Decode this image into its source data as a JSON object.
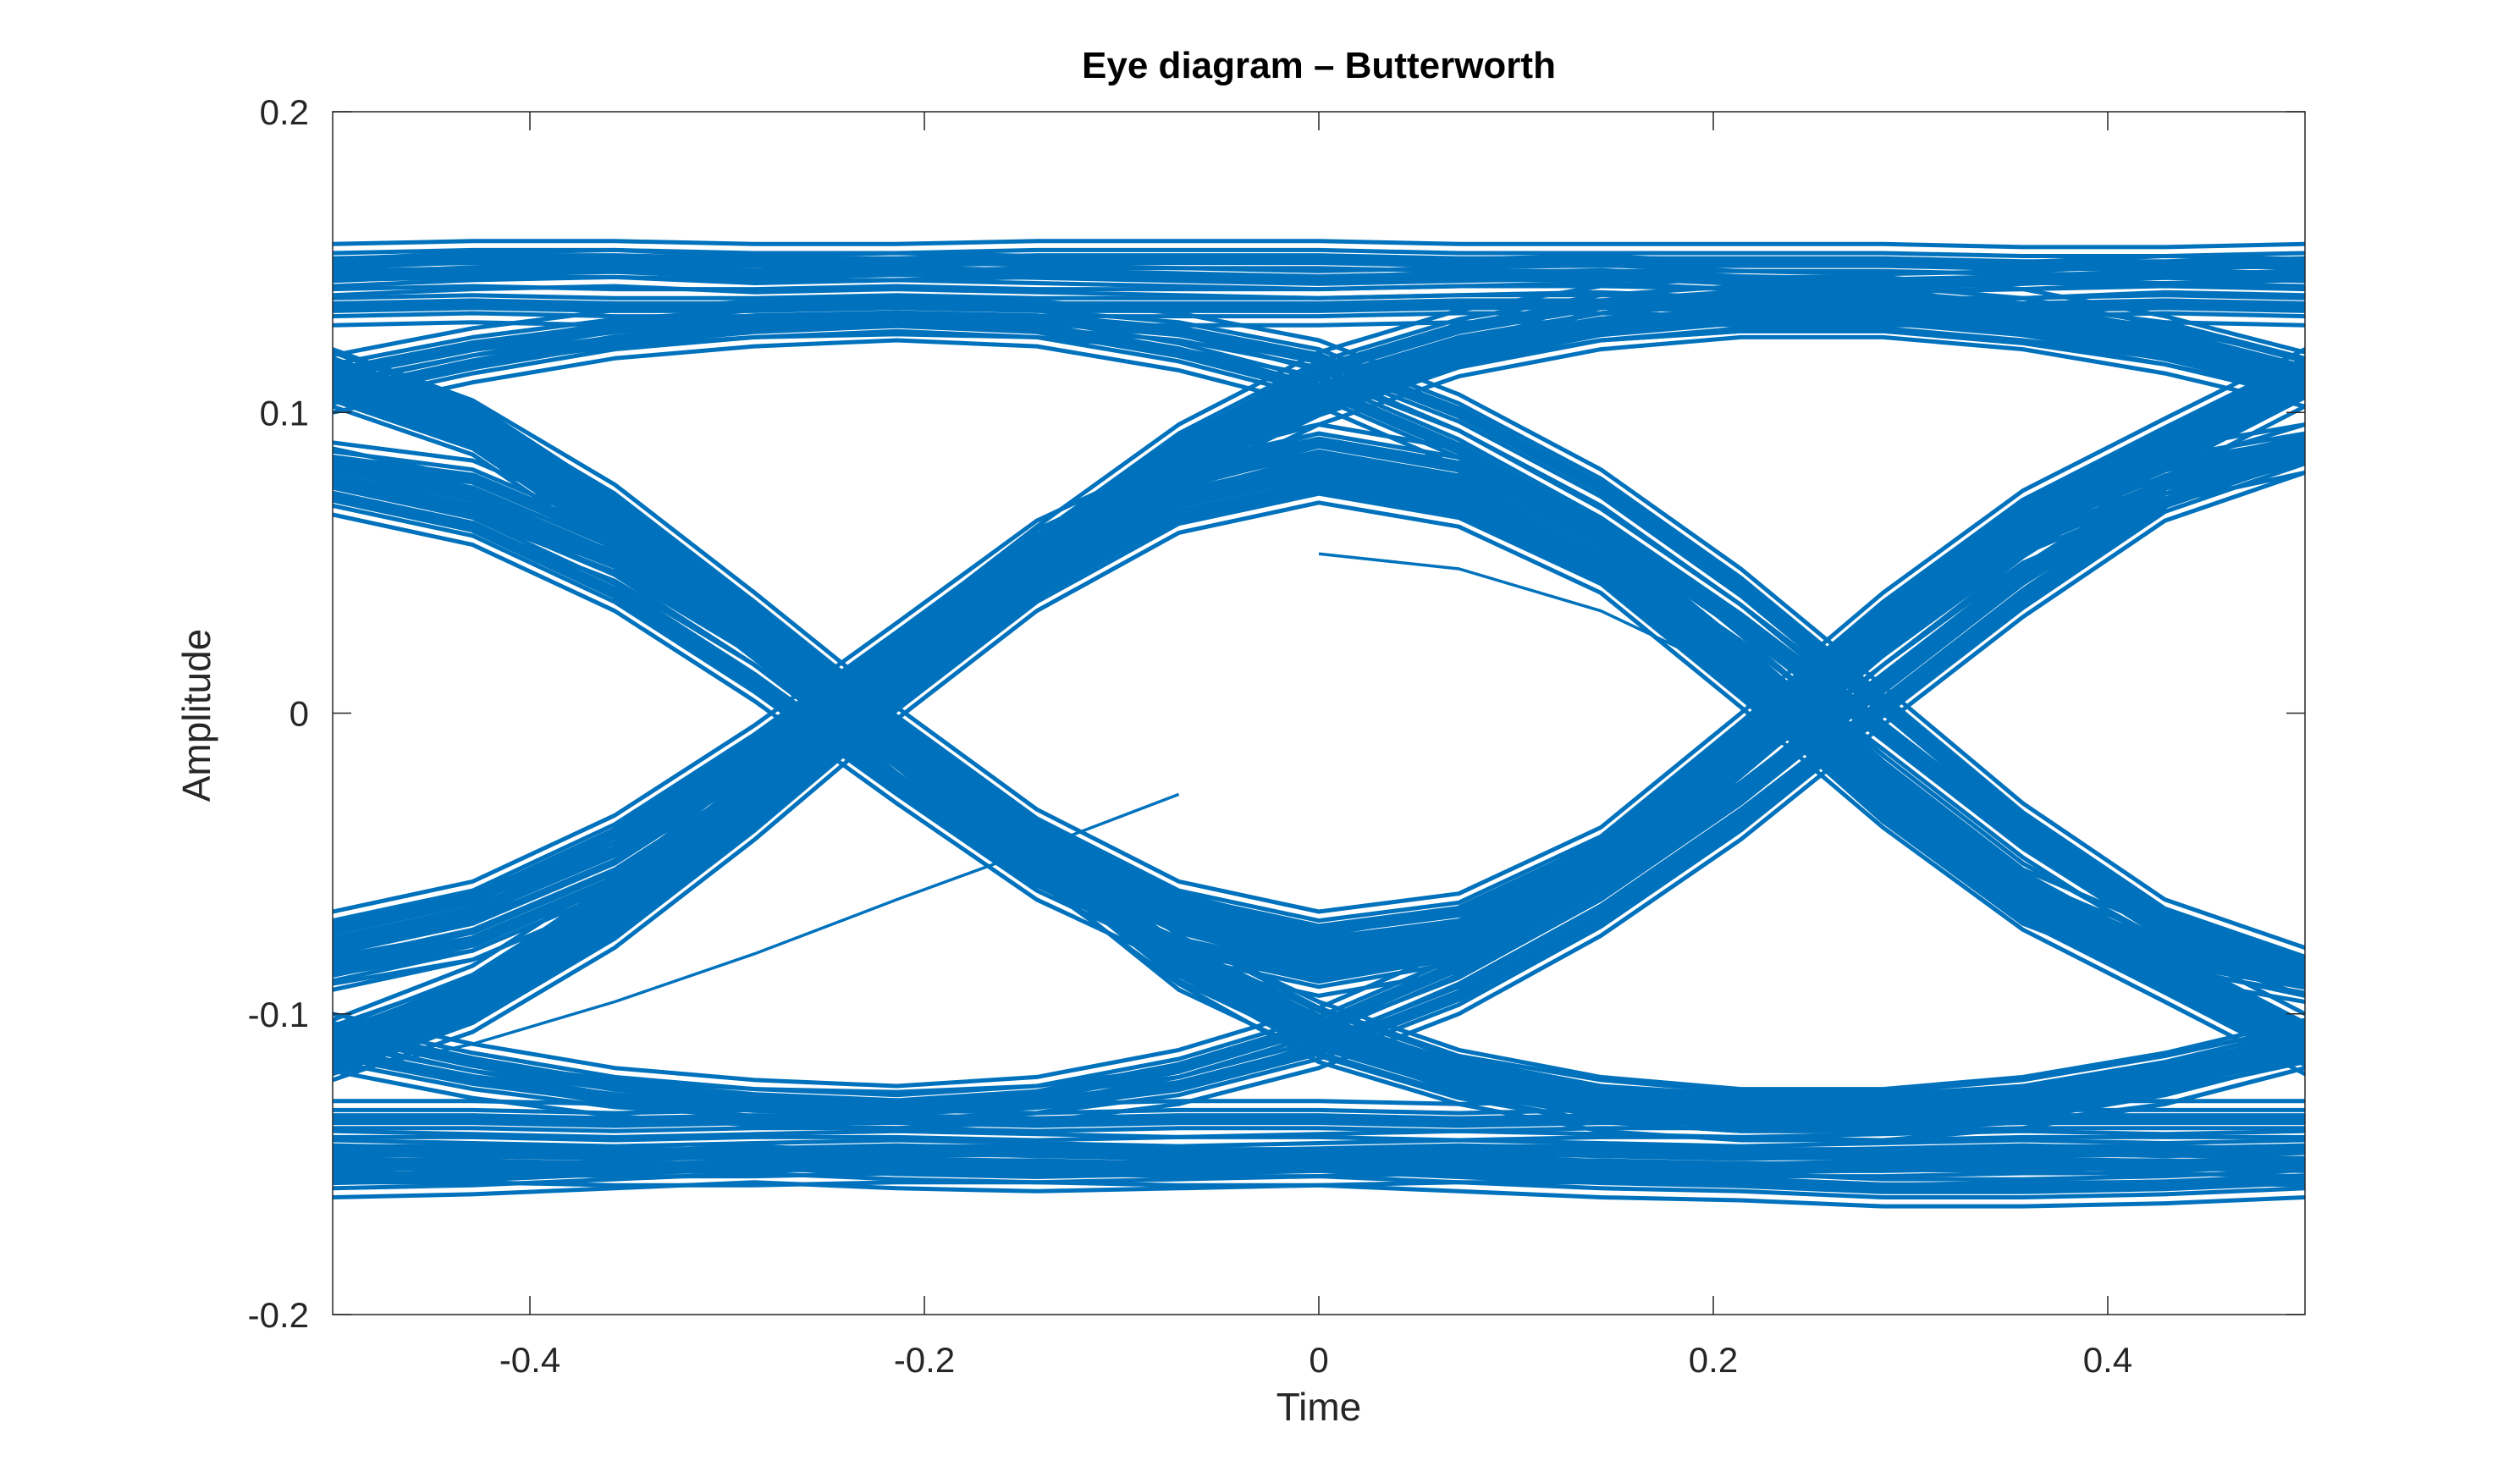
{
  "chart_data": {
    "type": "line",
    "title": "Eye diagram – Butterworth",
    "xlabel": "Time",
    "ylabel": "Amplitude",
    "xlim": [
      -0.5,
      0.5
    ],
    "ylim": [
      -0.2,
      0.2
    ],
    "xticks": [
      -0.4,
      -0.2,
      0,
      0.2,
      0.4
    ],
    "xtick_labels": [
      "-0.4",
      "-0.2",
      "0",
      "0.2",
      "0.4"
    ],
    "yticks": [
      -0.2,
      -0.1,
      0,
      0.1,
      0.2
    ],
    "ytick_labels": [
      "-0.2",
      "-0.1",
      "0",
      "0.1",
      "0.2"
    ],
    "grid": false,
    "legend": "none",
    "line_color": "#0072BD",
    "x": [
      -0.5,
      -0.429,
      -0.357,
      -0.286,
      -0.214,
      -0.143,
      -0.071,
      0,
      0.071,
      0.143,
      0.214,
      0.286,
      0.357,
      0.429,
      0.5
    ],
    "series": [
      {
        "values": [
          0.15,
          0.151,
          0.151,
          0.15,
          0.15,
          0.151,
          0.151,
          0.151,
          0.15,
          0.15,
          0.15,
          0.15,
          0.149,
          0.149,
          0.15
        ]
      },
      {
        "values": [
          0.135,
          0.136,
          0.135,
          0.135,
          0.136,
          0.135,
          0.135,
          0.135,
          0.136,
          0.136,
          0.135,
          0.135,
          0.135,
          0.136,
          0.135
        ]
      },
      {
        "values": [
          0.145,
          0.147,
          0.148,
          0.146,
          0.147,
          0.146,
          0.145,
          0.144,
          0.145,
          0.146,
          0.144,
          0.143,
          0.144,
          0.146,
          0.145
        ]
      },
      {
        "values": [
          0.113,
          0.122,
          0.128,
          0.131,
          0.132,
          0.131,
          0.127,
          0.118,
          0.1,
          0.075,
          0.042,
          0.003,
          -0.036,
          -0.068,
          -0.084
        ]
      },
      {
        "values": [
          0.106,
          0.116,
          0.124,
          0.128,
          0.13,
          0.128,
          0.12,
          0.108,
          0.088,
          0.062,
          0.03,
          -0.006,
          -0.042,
          -0.072,
          -0.088
        ]
      },
      {
        "values": [
          0.112,
          0.096,
          0.066,
          0.03,
          -0.008,
          -0.042,
          -0.066,
          -0.078,
          -0.072,
          -0.048,
          -0.01,
          0.03,
          0.064,
          0.088,
          0.112
        ]
      },
      {
        "values": [
          0.108,
          0.092,
          0.06,
          0.024,
          -0.014,
          -0.046,
          -0.07,
          -0.082,
          -0.076,
          -0.052,
          -0.014,
          0.026,
          0.06,
          0.084,
          0.108
        ]
      },
      {
        "values": [
          0.115,
          0.098,
          0.07,
          0.034,
          -0.004,
          -0.038,
          -0.062,
          -0.072,
          -0.066,
          -0.044,
          -0.006,
          0.034,
          0.068,
          0.092,
          0.115
        ]
      },
      {
        "values": [
          0.11,
          0.094,
          0.062,
          0.026,
          -0.012,
          -0.048,
          -0.086,
          -0.108,
          -0.122,
          -0.13,
          -0.133,
          -0.133,
          -0.13,
          -0.124,
          -0.112
        ]
      },
      {
        "values": [
          0.114,
          0.097,
          0.066,
          0.03,
          -0.008,
          -0.044,
          -0.08,
          -0.102,
          -0.118,
          -0.127,
          -0.131,
          -0.131,
          -0.127,
          -0.119,
          -0.108
        ]
      },
      {
        "values": [
          0.084,
          0.078,
          0.058,
          0.028,
          -0.01,
          -0.046,
          -0.08,
          -0.104,
          -0.12,
          -0.128,
          -0.132,
          -0.132,
          -0.128,
          -0.12,
          -0.11
        ]
      },
      {
        "values": [
          0.078,
          0.068,
          0.05,
          0.022,
          -0.014,
          -0.05,
          -0.084,
          -0.11,
          -0.124,
          -0.133,
          -0.136,
          -0.136,
          -0.132,
          -0.124,
          -0.112
        ]
      },
      {
        "values": [
          0.072,
          0.062,
          0.04,
          0.01,
          -0.024,
          -0.056,
          -0.078,
          -0.088,
          -0.08,
          -0.056,
          -0.018,
          0.022,
          0.056,
          0.076,
          0.086
        ]
      },
      {
        "values": [
          0.082,
          0.072,
          0.052,
          0.022,
          -0.014,
          -0.048,
          -0.07,
          -0.08,
          -0.072,
          -0.05,
          -0.012,
          0.028,
          0.062,
          0.082,
          0.09
        ]
      },
      {
        "values": [
          -0.15,
          -0.15,
          -0.151,
          -0.151,
          -0.15,
          -0.15,
          -0.151,
          -0.151,
          -0.15,
          -0.15,
          -0.151,
          -0.151,
          -0.15,
          -0.15,
          -0.151
        ]
      },
      {
        "values": [
          -0.135,
          -0.135,
          -0.136,
          -0.135,
          -0.135,
          -0.136,
          -0.135,
          -0.135,
          -0.136,
          -0.135,
          -0.135,
          -0.136,
          -0.135,
          -0.135,
          -0.135
        ]
      },
      {
        "values": [
          -0.145,
          -0.146,
          -0.147,
          -0.146,
          -0.145,
          -0.146,
          -0.147,
          -0.146,
          -0.145,
          -0.146,
          -0.147,
          -0.146,
          -0.145,
          -0.146,
          -0.145
        ]
      },
      {
        "values": [
          -0.155,
          -0.154,
          -0.152,
          -0.15,
          -0.152,
          -0.153,
          -0.152,
          -0.151,
          -0.153,
          -0.155,
          -0.156,
          -0.158,
          -0.158,
          -0.157,
          -0.155
        ]
      },
      {
        "values": [
          -0.113,
          -0.122,
          -0.128,
          -0.131,
          -0.132,
          -0.13,
          -0.124,
          -0.112,
          -0.094,
          -0.068,
          -0.036,
          0.002,
          0.038,
          0.07,
          0.086
        ]
      },
      {
        "values": [
          -0.106,
          -0.116,
          -0.124,
          -0.128,
          -0.13,
          -0.127,
          -0.118,
          -0.104,
          -0.084,
          -0.058,
          -0.026,
          0.01,
          0.046,
          0.076,
          0.09
        ]
      },
      {
        "values": [
          -0.112,
          -0.096,
          -0.066,
          -0.03,
          0.01,
          0.046,
          0.072,
          0.084,
          0.076,
          0.052,
          0.014,
          -0.026,
          -0.062,
          -0.086,
          -0.11
        ]
      },
      {
        "values": [
          -0.108,
          -0.09,
          -0.06,
          -0.024,
          0.016,
          0.052,
          0.078,
          0.09,
          0.082,
          0.058,
          0.02,
          -0.02,
          -0.056,
          -0.082,
          -0.106
        ]
      },
      {
        "values": [
          -0.116,
          -0.1,
          -0.072,
          -0.036,
          0.004,
          0.04,
          0.066,
          0.076,
          0.068,
          0.046,
          0.008,
          -0.032,
          -0.066,
          -0.09,
          -0.114
        ]
      },
      {
        "values": [
          -0.11,
          -0.094,
          -0.062,
          -0.026,
          0.012,
          0.048,
          0.086,
          0.108,
          0.122,
          0.13,
          0.133,
          0.133,
          0.13,
          0.124,
          0.112
        ]
      },
      {
        "values": [
          -0.114,
          -0.097,
          -0.066,
          -0.03,
          0.008,
          0.044,
          0.08,
          0.102,
          0.118,
          0.127,
          0.131,
          0.131,
          0.127,
          0.119,
          0.108
        ]
      },
      {
        "values": [
          -0.084,
          -0.076,
          -0.056,
          -0.026,
          0.012,
          0.048,
          0.082,
          0.106,
          0.122,
          0.13,
          0.133,
          0.133,
          0.129,
          0.122,
          0.112
        ]
      },
      {
        "values": [
          -0.076,
          -0.066,
          -0.046,
          -0.016,
          0.02,
          0.056,
          0.09,
          0.114,
          0.128,
          0.136,
          0.139,
          0.139,
          0.135,
          0.126,
          0.114
        ]
      },
      {
        "values": [
          -0.072,
          -0.062,
          -0.04,
          -0.01,
          0.024,
          0.058,
          0.08,
          0.09,
          0.082,
          0.058,
          0.02,
          -0.022,
          -0.058,
          -0.078,
          -0.088
        ]
      },
      {
        "values": [
          -0.086,
          -0.076,
          -0.056,
          -0.026,
          0.01,
          0.046,
          0.07,
          0.08,
          0.072,
          0.05,
          0.012,
          -0.03,
          -0.064,
          -0.082,
          -0.09
        ]
      }
    ],
    "stray_segments": [
      {
        "x": [
          -0.5,
          -0.429,
          -0.357,
          -0.286,
          -0.214,
          -0.143,
          -0.071
        ],
        "y": [
          -0.12,
          -0.11,
          -0.096,
          -0.08,
          -0.062,
          -0.045,
          -0.027
        ]
      },
      {
        "x": [
          0.0,
          0.071,
          0.143,
          0.214
        ],
        "y": [
          0.053,
          0.048,
          0.034,
          0.012
        ]
      }
    ]
  }
}
